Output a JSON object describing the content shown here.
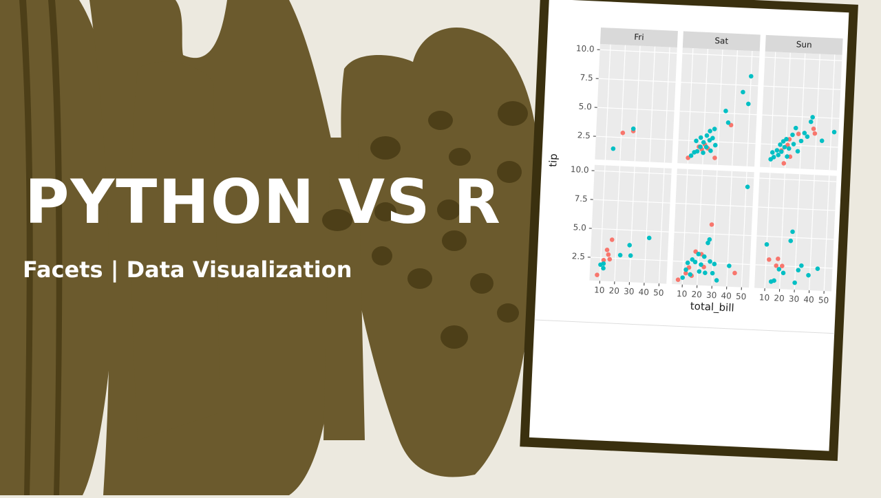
{
  "title": "PYTHON VS R",
  "subtitle": "Facets | Data Visualization",
  "chart_data": {
    "type": "scatter",
    "facets": [
      "Fri",
      "Sat",
      "Sun"
    ],
    "xlabel": "total_bill",
    "ylabel": "tip",
    "xlim": [
      3,
      55
    ],
    "ylim": [
      0.5,
      10.5
    ],
    "xticks": [
      10,
      20,
      30,
      40,
      50
    ],
    "yticks": [
      2.5,
      {
        "value": 5,
        "label": "5.0"
      },
      7.5,
      {
        "value": 10,
        "label": "10.0"
      }
    ],
    "grid": true,
    "panels": [
      {
        "series": [
          {
            "color": "#f8766d",
            "x": [
              21,
              28
            ],
            "y": [
              2.9,
              3.1
            ]
          },
          {
            "color": "#00bfc4",
            "x": [
              15,
              28
            ],
            "y": [
              1.5,
              3.3
            ]
          }
        ]
      },
      {
        "series": [
          {
            "color": "#f8766d",
            "x": [
              10,
              17,
              19,
              21,
              23,
              28,
              38
            ],
            "y": [
              1,
              2,
              1.8,
              2.2,
              1.9,
              1.1,
              4
            ]
          },
          {
            "color": "#00bfc4",
            "x": [
              12,
              14,
              15,
              16,
              18,
              18,
              20,
              20,
              22,
              22,
              24,
              24,
              25,
              26,
              27,
              28,
              34,
              36,
              45,
              49,
              50
            ],
            "y": [
              1.2,
              1.5,
              2.5,
              1.6,
              2,
              2.8,
              2.4,
              1.5,
              3,
              2,
              3.4,
              2.6,
              1.7,
              2.8,
              3.6,
              2.2,
              5.2,
              4.2,
              6.9,
              5.9,
              8.3
            ]
          }
        ]
      },
      {
        "series": [
          {
            "color": "#f8766d",
            "x": [
              17,
              19,
              21,
              22,
              23,
              28,
              38,
              39
            ],
            "y": [
              2,
              0.9,
              2.5,
              3,
              1.5,
              3.5,
              4,
              3.6
            ]
          },
          {
            "color": "#00bfc4",
            "x": [
              10,
              11,
              12,
              14,
              15,
              16,
              17,
              18,
              19,
              20,
              21,
              22,
              24,
              25,
              26,
              28,
              30,
              32,
              34,
              36,
              37,
              44,
              52
            ],
            "y": [
              1.2,
              1.8,
              1.4,
              2,
              1.6,
              2.5,
              1.9,
              2.8,
              2.3,
              3,
              1.5,
              2.2,
              3.4,
              2.6,
              4,
              2,
              2.9,
              3.6,
              3.3,
              4.6,
              5,
              3,
              3.8
            ]
          }
        ]
      },
      {
        "series": [
          {
            "color": "#f8766d",
            "x": [
              8,
              12,
              14,
              15,
              16,
              17
            ],
            "y": [
              1,
              2.3,
              3.2,
              2.8,
              2.4,
              4.1
            ]
          },
          {
            "color": "#00bfc4",
            "x": [
              10,
              12,
              12,
              23,
              29,
              30,
              42
            ],
            "y": [
              1.9,
              1.6,
              2,
              2.8,
              3.7,
              2.8,
              4.4
            ]
          }
        ]
      },
      {
        "series": [
          {
            "color": "#f8766d",
            "x": [
              7,
              12,
              14,
              16,
              18,
              22,
              24,
              28,
              45
            ],
            "y": [
              0.9,
              1.5,
              2,
              1.3,
              3.4,
              3.2,
              2.1,
              5.8,
              1.7
            ]
          },
          {
            "color": "#00bfc4",
            "x": [
              10,
              12,
              13,
              15,
              16,
              18,
              20,
              21,
              22,
              24,
              25,
              26,
              27,
              28,
              30,
              31,
              33,
              41,
              51
            ],
            "y": [
              1.1,
              1.8,
              2.4,
              1.4,
              2.7,
              2.5,
              3.2,
              1.7,
              2.3,
              3,
              1.6,
              4.2,
              4.5,
              2.6,
              1.6,
              2.4,
              1,
              2.3,
              9.2
            ]
          }
        ]
      },
      {
        "series": [
          {
            "color": "#f8766d",
            "x": [
              12,
              17,
              18,
              21
            ],
            "y": [
              3,
              2.5,
              3.1,
              2.5
            ]
          },
          {
            "color": "#00bfc4",
            "x": [
              10,
              14,
              16,
              19,
              22,
              26,
              27,
              30,
              32,
              34,
              39,
              45
            ],
            "y": [
              4.3,
              1.1,
              1.2,
              2.2,
              1.9,
              4.7,
              5.5,
              1.1,
              2.2,
              2.6,
              1.8,
              2.4
            ]
          }
        ]
      }
    ]
  }
}
